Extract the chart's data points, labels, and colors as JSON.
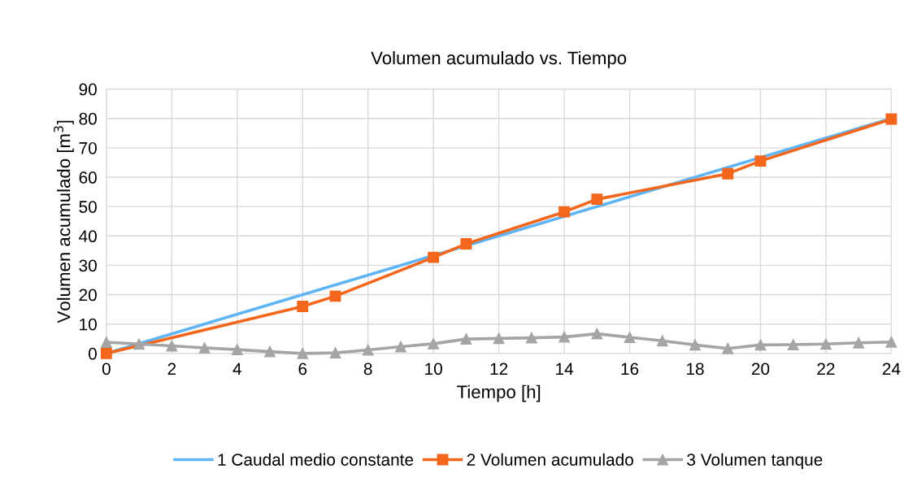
{
  "chart_data": {
    "type": "line",
    "title": "Volumen acumulado vs. Tiempo",
    "xlabel": "Tiempo [h]",
    "ylabel": "Volumen acumulado [m$^{3}$]",
    "xlim": [
      0,
      24
    ],
    "xticks": [
      0,
      2,
      4,
      6,
      8,
      10,
      12,
      14,
      16,
      18,
      20,
      22,
      24
    ],
    "ylim": [
      0,
      90
    ],
    "yticks": [
      0,
      10,
      20,
      30,
      40,
      50,
      60,
      70,
      80,
      90
    ],
    "grid": true,
    "legend": "bottom",
    "series": [
      {
        "name": "1 Caudal medio constante",
        "color": "#5eb4f5",
        "marker": "none",
        "x": [
          0,
          24
        ],
        "values": [
          0,
          80
        ]
      },
      {
        "name": "2 Volumen acumulado",
        "color": "#f4661b",
        "marker": "square",
        "x": [
          0,
          6,
          7,
          10,
          11,
          14,
          15,
          19,
          20,
          24
        ],
        "values": [
          0,
          16,
          19.5,
          32.7,
          37.3,
          48.2,
          52.5,
          61.2,
          65.5,
          79.8
        ]
      },
      {
        "name": "3 Volumen tanque",
        "color": "#a5a5a5",
        "marker": "triangle",
        "x": [
          0,
          1,
          2,
          3,
          4,
          5,
          6,
          7,
          8,
          9,
          10,
          11,
          12,
          13,
          14,
          15,
          16,
          17,
          18,
          19,
          20,
          21,
          22,
          23,
          24
        ],
        "values": [
          3.8,
          3.2,
          2.6,
          1.9,
          1.3,
          0.6,
          0,
          0.2,
          1.2,
          2.3,
          3.3,
          4.9,
          5.1,
          5.3,
          5.6,
          6.7,
          5.5,
          4.3,
          2.9,
          1.7,
          2.9,
          3.0,
          3.2,
          3.6,
          3.9
        ]
      }
    ]
  }
}
